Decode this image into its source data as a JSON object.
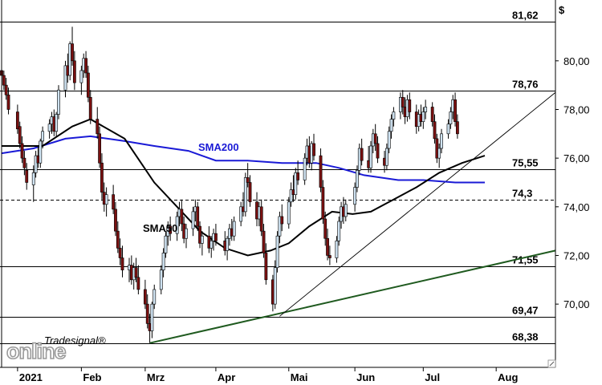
{
  "chart_data": {
    "type": "candlestick",
    "currency_label": "$",
    "y_ticks": [
      {
        "value": 70,
        "label": "70,00"
      },
      {
        "value": 72,
        "label": "72,00"
      },
      {
        "value": 74,
        "label": "74,00"
      },
      {
        "value": 76,
        "label": "76,00"
      },
      {
        "value": 78,
        "label": "78,00"
      },
      {
        "value": 80,
        "label": "80,00"
      }
    ],
    "ylim": [
      67.4,
      82.5
    ],
    "x_labels": [
      {
        "label": "2021",
        "date": "2021-01-04"
      },
      {
        "label": "Feb",
        "date": "2021-02-01"
      },
      {
        "label": "Mrz",
        "date": "2021-03-01"
      },
      {
        "label": "Apr",
        "date": "2021-04-01"
      },
      {
        "label": "Mai",
        "date": "2021-05-03"
      },
      {
        "label": "Jun",
        "date": "2021-06-01"
      },
      {
        "label": "Jul",
        "date": "2021-07-01"
      },
      {
        "label": "Aug",
        "date": "2021-08-02"
      }
    ],
    "x_range": [
      "2020-12-28",
      "2021-08-28"
    ],
    "levels": [
      {
        "value": 81.62,
        "label": "81,62",
        "style": "solid"
      },
      {
        "value": 78.76,
        "label": "78,76",
        "style": "solid"
      },
      {
        "value": 75.55,
        "label": "75,55",
        "style": "solid"
      },
      {
        "value": 74.3,
        "label": "74,3",
        "style": "dashed"
      },
      {
        "value": 71.55,
        "label": "71,55",
        "style": "solid"
      },
      {
        "value": 69.47,
        "label": "69,47",
        "style": "solid"
      },
      {
        "value": 68.38,
        "label": "68,38",
        "style": "solid"
      }
    ],
    "trendlines": [
      {
        "from": {
          "date": "2021-03-03",
          "value": 68.4
        },
        "to": {
          "date": "2021-08-28",
          "value": 72.2
        },
        "color": "#1f5a1f"
      },
      {
        "from": {
          "date": "2021-04-29",
          "value": 69.5
        },
        "to": {
          "date": "2021-08-28",
          "value": 78.7
        },
        "color": "#000000"
      }
    ],
    "series": [
      {
        "name": "SMA200",
        "color": "#1a1ad6",
        "points": [
          [
            "2020-12-28",
            76.2
          ],
          [
            "2021-01-11",
            76.4
          ],
          [
            "2021-01-25",
            76.8
          ],
          [
            "2021-02-05",
            76.9
          ],
          [
            "2021-02-20",
            76.7
          ],
          [
            "2021-03-05",
            76.5
          ],
          [
            "2021-03-20",
            76.3
          ],
          [
            "2021-04-01",
            75.9
          ],
          [
            "2021-04-15",
            75.9
          ],
          [
            "2021-04-30",
            75.8
          ],
          [
            "2021-05-15",
            75.8
          ],
          [
            "2021-05-25",
            75.6
          ],
          [
            "2021-06-05",
            75.3
          ],
          [
            "2021-06-20",
            75.1
          ],
          [
            "2021-07-01",
            75.1
          ],
          [
            "2021-07-15",
            75.0
          ],
          [
            "2021-07-28",
            75.0
          ]
        ]
      },
      {
        "name": "SMA50",
        "color": "#000000",
        "points": [
          [
            "2020-12-28",
            76.5
          ],
          [
            "2021-01-15",
            76.5
          ],
          [
            "2021-01-28",
            77.3
          ],
          [
            "2021-02-05",
            77.6
          ],
          [
            "2021-02-20",
            76.8
          ],
          [
            "2021-03-05",
            75.0
          ],
          [
            "2021-03-15",
            74.0
          ],
          [
            "2021-03-25",
            73.0
          ],
          [
            "2021-04-05",
            72.3
          ],
          [
            "2021-04-15",
            72.0
          ],
          [
            "2021-04-25",
            72.2
          ],
          [
            "2021-05-03",
            72.5
          ],
          [
            "2021-05-12",
            73.2
          ],
          [
            "2021-05-22",
            73.8
          ],
          [
            "2021-05-31",
            73.7
          ],
          [
            "2021-06-08",
            73.8
          ],
          [
            "2021-06-18",
            74.3
          ],
          [
            "2021-06-28",
            74.8
          ],
          [
            "2021-07-08",
            75.4
          ],
          [
            "2021-07-18",
            75.8
          ],
          [
            "2021-07-28",
            76.1
          ]
        ]
      }
    ],
    "candles": [
      [
        "2020-12-28",
        79.6,
        80.1,
        79.0,
        79.4
      ],
      [
        "2020-12-29",
        79.4,
        79.6,
        78.8,
        79.0
      ],
      [
        "2020-12-30",
        79.0,
        79.3,
        78.4,
        78.6
      ],
      [
        "2020-12-31",
        78.6,
        78.9,
        77.8,
        78.0
      ],
      [
        "2021-01-04",
        77.9,
        78.2,
        77.0,
        77.2
      ],
      [
        "2021-01-05",
        77.3,
        77.5,
        76.4,
        76.6
      ],
      [
        "2021-01-06",
        76.6,
        76.9,
        75.8,
        76.0
      ],
      [
        "2021-01-07",
        76.0,
        76.3,
        75.3,
        75.6
      ],
      [
        "2021-01-08",
        75.5,
        75.8,
        74.7,
        75.0
      ],
      [
        "2021-01-11",
        74.9,
        75.7,
        74.2,
        75.4
      ],
      [
        "2021-01-12",
        75.4,
        76.3,
        75.2,
        76.1
      ],
      [
        "2021-01-13",
        76.1,
        76.5,
        75.6,
        75.8
      ],
      [
        "2021-01-14",
        75.8,
        76.8,
        75.6,
        76.7
      ],
      [
        "2021-01-15",
        76.7,
        77.3,
        76.4,
        77.1
      ],
      [
        "2021-01-18",
        77.1,
        77.6,
        76.8,
        77.4
      ],
      [
        "2021-01-19",
        77.4,
        77.9,
        77.0,
        77.7
      ],
      [
        "2021-01-20",
        77.7,
        78.0,
        76.9,
        77.1
      ],
      [
        "2021-01-21",
        77.1,
        77.9,
        76.9,
        77.8
      ],
      [
        "2021-01-22",
        77.8,
        79.0,
        77.6,
        78.8
      ],
      [
        "2021-01-25",
        78.8,
        80.0,
        78.5,
        79.8
      ],
      [
        "2021-01-26",
        79.8,
        80.3,
        79.1,
        79.4
      ],
      [
        "2021-01-27",
        79.4,
        80.8,
        79.2,
        80.7
      ],
      [
        "2021-01-28",
        80.7,
        81.4,
        79.8,
        80.0
      ],
      [
        "2021-01-29",
        80.0,
        80.4,
        78.8,
        79.1
      ],
      [
        "2021-02-01",
        79.1,
        79.8,
        78.6,
        79.6
      ],
      [
        "2021-02-02",
        79.6,
        80.3,
        79.3,
        80.1
      ],
      [
        "2021-02-03",
        80.1,
        80.4,
        79.3,
        79.5
      ],
      [
        "2021-02-04",
        79.5,
        79.8,
        78.3,
        78.5
      ],
      [
        "2021-02-05",
        78.5,
        78.8,
        77.4,
        77.6
      ],
      [
        "2021-02-08",
        77.6,
        78.1,
        76.8,
        77.0
      ],
      [
        "2021-02-09",
        77.0,
        77.3,
        75.6,
        75.8
      ],
      [
        "2021-02-10",
        75.8,
        76.2,
        74.3,
        74.6
      ],
      [
        "2021-02-11",
        74.6,
        75.0,
        73.8,
        74.1
      ],
      [
        "2021-02-12",
        74.1,
        74.8,
        73.6,
        74.5
      ],
      [
        "2021-02-15",
        74.5,
        74.9,
        73.7,
        73.9
      ],
      [
        "2021-02-16",
        73.9,
        74.2,
        72.8,
        73.0
      ],
      [
        "2021-02-17",
        73.0,
        73.4,
        72.1,
        72.3
      ],
      [
        "2021-02-18",
        72.3,
        72.7,
        71.6,
        71.9
      ],
      [
        "2021-02-19",
        71.9,
        72.4,
        71.1,
        71.4
      ],
      [
        "2021-02-22",
        71.4,
        71.9,
        70.9,
        71.6
      ],
      [
        "2021-02-23",
        71.6,
        72.0,
        70.8,
        71.0
      ],
      [
        "2021-02-24",
        71.0,
        71.7,
        70.6,
        71.5
      ],
      [
        "2021-02-25",
        71.5,
        71.9,
        70.9,
        71.1
      ],
      [
        "2021-02-26",
        71.1,
        71.6,
        70.4,
        70.6
      ],
      [
        "2021-03-01",
        70.6,
        71.0,
        69.8,
        70.0
      ],
      [
        "2021-03-02",
        70.0,
        70.4,
        69.0,
        69.2
      ],
      [
        "2021-03-03",
        69.2,
        69.6,
        68.4,
        68.9
      ],
      [
        "2021-03-04",
        68.9,
        70.1,
        68.6,
        70.0
      ],
      [
        "2021-03-05",
        70.0,
        70.8,
        69.8,
        70.6
      ],
      [
        "2021-03-08",
        70.6,
        71.6,
        70.4,
        71.4
      ],
      [
        "2021-03-09",
        71.4,
        72.3,
        71.1,
        72.1
      ],
      [
        "2021-03-10",
        72.1,
        73.0,
        71.9,
        72.8
      ],
      [
        "2021-03-11",
        72.8,
        73.4,
        72.4,
        73.2
      ],
      [
        "2021-03-12",
        73.2,
        73.6,
        72.6,
        72.9
      ],
      [
        "2021-03-15",
        72.9,
        73.8,
        72.6,
        73.6
      ],
      [
        "2021-03-16",
        73.6,
        74.2,
        73.2,
        73.9
      ],
      [
        "2021-03-17",
        73.9,
        74.3,
        73.0,
        73.3
      ],
      [
        "2021-03-18",
        73.3,
        73.6,
        72.5,
        72.7
      ],
      [
        "2021-03-19",
        72.7,
        73.3,
        72.3,
        73.1
      ],
      [
        "2021-03-22",
        73.1,
        74.0,
        72.8,
        73.8
      ],
      [
        "2021-03-23",
        73.8,
        74.3,
        73.4,
        74.0
      ],
      [
        "2021-03-24",
        74.0,
        74.2,
        73.0,
        73.2
      ],
      [
        "2021-03-25",
        73.2,
        73.4,
        72.3,
        72.5
      ],
      [
        "2021-03-26",
        72.5,
        73.0,
        72.0,
        72.8
      ],
      [
        "2021-03-29",
        72.8,
        73.2,
        72.1,
        72.3
      ],
      [
        "2021-03-30",
        72.3,
        72.8,
        71.9,
        72.6
      ],
      [
        "2021-03-31",
        72.6,
        73.1,
        72.2,
        72.9
      ],
      [
        "2021-04-01",
        72.9,
        73.3,
        72.4,
        72.6
      ],
      [
        "2021-04-05",
        72.6,
        73.0,
        72.0,
        72.2
      ],
      [
        "2021-04-06",
        72.2,
        72.8,
        71.8,
        72.7
      ],
      [
        "2021-04-07",
        72.7,
        73.3,
        72.4,
        73.1
      ],
      [
        "2021-04-08",
        73.1,
        73.5,
        72.6,
        72.8
      ],
      [
        "2021-04-09",
        72.8,
        73.6,
        72.6,
        73.4
      ],
      [
        "2021-04-12",
        73.4,
        74.2,
        73.2,
        74.0
      ],
      [
        "2021-04-13",
        74.0,
        74.6,
        73.6,
        73.8
      ],
      [
        "2021-04-14",
        73.8,
        75.4,
        73.6,
        75.2
      ],
      [
        "2021-04-15",
        75.2,
        75.8,
        74.8,
        75.0
      ],
      [
        "2021-04-16",
        75.0,
        75.3,
        74.0,
        74.2
      ],
      [
        "2021-04-19",
        74.2,
        74.6,
        73.2,
        73.5
      ],
      [
        "2021-04-20",
        73.5,
        74.2,
        73.2,
        74.0
      ],
      [
        "2021-04-21",
        74.0,
        74.3,
        72.8,
        73.0
      ],
      [
        "2021-04-22",
        73.0,
        73.3,
        71.9,
        72.1
      ],
      [
        "2021-04-23",
        72.1,
        72.5,
        70.8,
        71.0
      ],
      [
        "2021-04-26",
        71.0,
        71.2,
        69.7,
        70.0
      ],
      [
        "2021-04-27",
        70.0,
        71.8,
        69.8,
        71.5
      ],
      [
        "2021-04-28",
        71.5,
        73.0,
        71.3,
        72.8
      ],
      [
        "2021-04-29",
        72.8,
        73.8,
        72.5,
        73.6
      ],
      [
        "2021-04-30",
        73.6,
        74.1,
        73.0,
        73.3
      ],
      [
        "2021-05-03",
        73.3,
        74.4,
        73.1,
        74.2
      ],
      [
        "2021-05-04",
        74.2,
        75.0,
        74.0,
        74.7
      ],
      [
        "2021-05-05",
        74.7,
        75.3,
        74.2,
        74.5
      ],
      [
        "2021-05-06",
        74.5,
        75.6,
        74.3,
        75.4
      ],
      [
        "2021-05-07",
        75.4,
        75.9,
        74.9,
        75.1
      ],
      [
        "2021-05-10",
        75.1,
        76.2,
        74.9,
        76.0
      ],
      [
        "2021-05-11",
        76.0,
        76.8,
        75.7,
        76.5
      ],
      [
        "2021-05-12",
        76.5,
        76.9,
        75.6,
        75.8
      ],
      [
        "2021-05-13",
        75.8,
        76.7,
        75.5,
        76.6
      ],
      [
        "2021-05-14",
        76.6,
        77.0,
        75.9,
        76.1
      ],
      [
        "2021-05-17",
        76.1,
        76.4,
        74.6,
        74.8
      ],
      [
        "2021-05-18",
        74.8,
        75.1,
        73.3,
        73.5
      ],
      [
        "2021-05-19",
        73.5,
        73.8,
        72.4,
        72.7
      ],
      [
        "2021-05-20",
        72.7,
        73.1,
        71.8,
        72.0
      ],
      [
        "2021-05-21",
        72.0,
        72.4,
        71.6,
        71.9
      ],
      [
        "2021-05-24",
        71.9,
        72.8,
        71.7,
        72.6
      ],
      [
        "2021-05-25",
        72.6,
        73.6,
        72.4,
        73.4
      ],
      [
        "2021-05-26",
        73.4,
        74.2,
        73.1,
        74.0
      ],
      [
        "2021-05-27",
        74.0,
        74.4,
        73.3,
        73.6
      ],
      [
        "2021-05-28",
        73.6,
        74.3,
        73.4,
        74.1
      ],
      [
        "2021-06-01",
        74.1,
        75.0,
        73.8,
        74.8
      ],
      [
        "2021-06-02",
        74.8,
        75.7,
        74.6,
        75.5
      ],
      [
        "2021-06-03",
        75.5,
        76.6,
        75.3,
        76.4
      ],
      [
        "2021-06-04",
        76.4,
        76.8,
        75.7,
        75.9
      ],
      [
        "2021-06-07",
        75.9,
        76.5,
        75.4,
        75.6
      ],
      [
        "2021-06-08",
        75.6,
        76.7,
        75.4,
        76.5
      ],
      [
        "2021-06-09",
        76.5,
        77.2,
        76.2,
        77.0
      ],
      [
        "2021-06-10",
        77.0,
        77.4,
        76.3,
        76.6
      ],
      [
        "2021-06-11",
        76.6,
        76.9,
        75.8,
        76.0
      ],
      [
        "2021-06-14",
        76.0,
        76.3,
        75.4,
        75.7
      ],
      [
        "2021-06-15",
        75.7,
        76.6,
        75.5,
        76.4
      ],
      [
        "2021-06-16",
        76.4,
        77.3,
        76.2,
        77.1
      ],
      [
        "2021-06-17",
        77.1,
        77.8,
        76.8,
        77.6
      ],
      [
        "2021-06-18",
        77.6,
        78.1,
        77.3,
        77.9
      ],
      [
        "2021-06-21",
        77.9,
        78.7,
        77.6,
        78.5
      ],
      [
        "2021-06-22",
        78.5,
        78.8,
        77.8,
        78.1
      ],
      [
        "2021-06-23",
        78.1,
        78.5,
        77.4,
        77.7
      ],
      [
        "2021-06-24",
        77.7,
        78.6,
        77.5,
        78.4
      ],
      [
        "2021-06-25",
        78.4,
        78.7,
        77.6,
        77.9
      ],
      [
        "2021-06-28",
        77.9,
        78.2,
        77.0,
        77.3
      ],
      [
        "2021-06-29",
        77.3,
        78.0,
        77.1,
        77.8
      ],
      [
        "2021-06-30",
        77.8,
        78.2,
        77.3,
        77.5
      ],
      [
        "2021-07-01",
        77.5,
        78.1,
        77.2,
        77.9
      ],
      [
        "2021-07-02",
        77.9,
        78.4,
        77.6,
        78.1
      ],
      [
        "2021-07-05",
        78.1,
        78.3,
        77.3,
        77.5
      ],
      [
        "2021-07-06",
        77.5,
        77.8,
        76.6,
        76.8
      ],
      [
        "2021-07-07",
        76.8,
        77.0,
        75.8,
        76.0
      ],
      [
        "2021-07-08",
        76.0,
        76.6,
        75.6,
        76.4
      ],
      [
        "2021-07-09",
        76.4,
        77.2,
        76.2,
        77.0
      ],
      [
        "2021-07-12",
        77.0,
        77.6,
        76.8,
        77.4
      ],
      [
        "2021-07-13",
        77.4,
        78.1,
        77.2,
        77.9
      ],
      [
        "2021-07-14",
        77.9,
        78.6,
        77.6,
        78.4
      ],
      [
        "2021-07-15",
        78.4,
        78.7,
        77.3,
        77.5
      ],
      [
        "2021-07-16",
        77.5,
        77.8,
        76.8,
        77.0
      ]
    ]
  },
  "annotations": {
    "sma200_label": "SMA200",
    "sma50_label": "SMA50"
  },
  "branding": {
    "logo_text": "online",
    "logo_tag": "Tradesignal®"
  },
  "colors": {
    "up_candle": "#cfe3f2",
    "down_candle": "#7a1010",
    "grid_frame": "#000000"
  }
}
